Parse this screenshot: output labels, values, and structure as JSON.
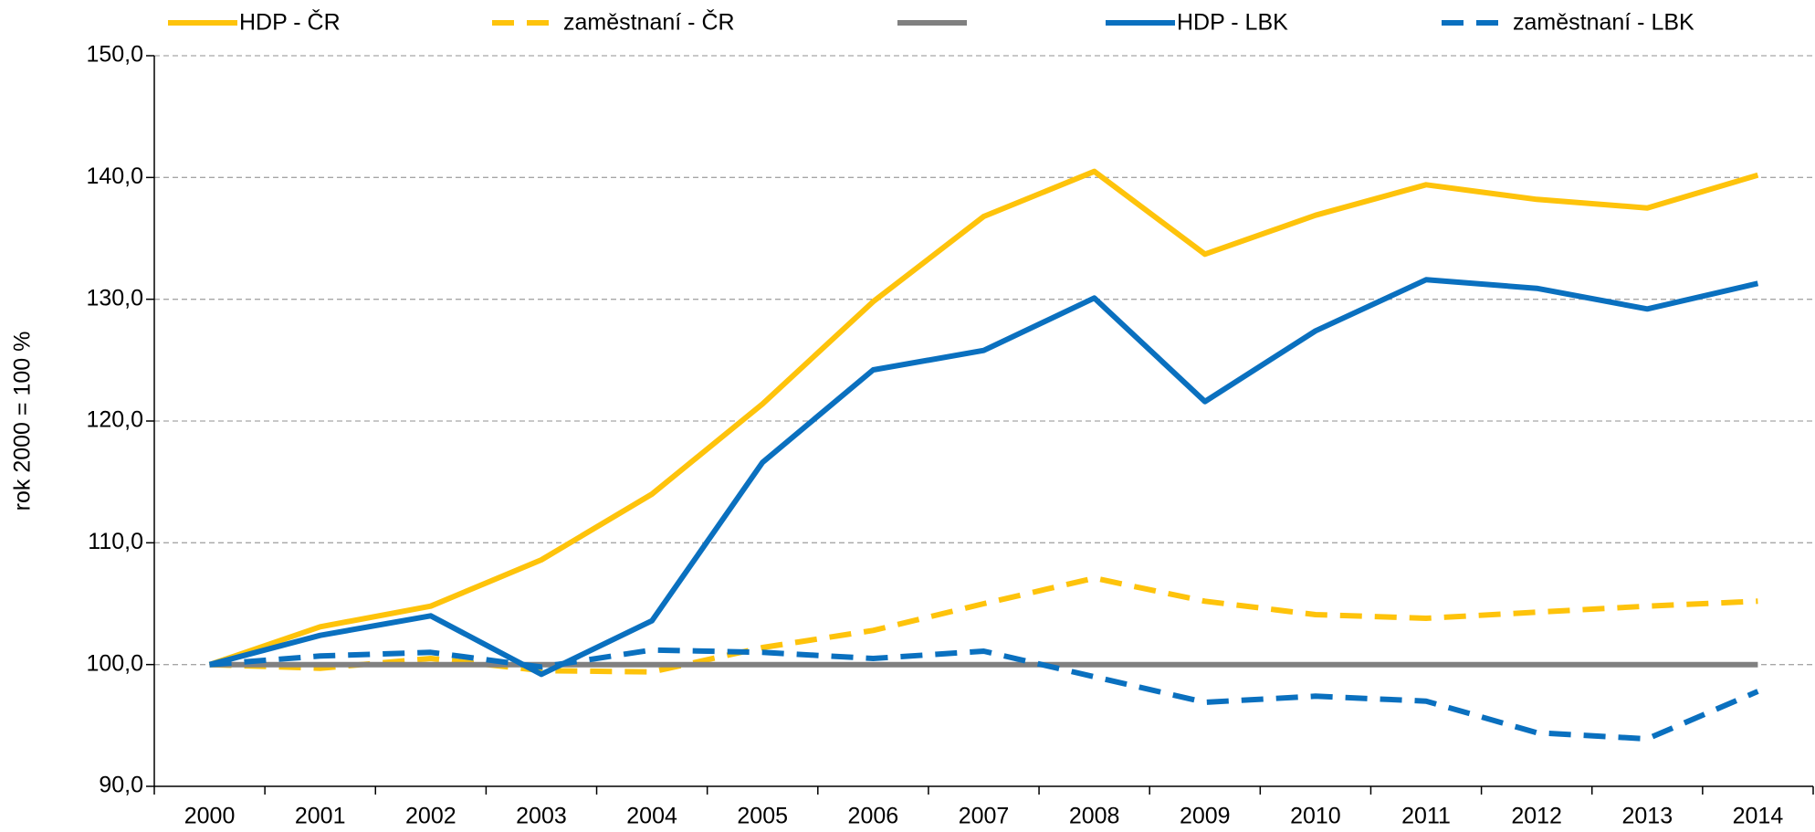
{
  "chart_data": {
    "type": "line",
    "y_label": "rok 2000 = 100 %",
    "categories": [
      "2000",
      "2001",
      "2002",
      "2003",
      "2004",
      "2005",
      "2006",
      "2007",
      "2008",
      "2009",
      "2010",
      "2011",
      "2012",
      "2013",
      "2014"
    ],
    "series": [
      {
        "name": "HDP - ČR",
        "color": "#fec30b",
        "dash": false,
        "values": [
          100,
          103.1,
          104.8,
          108.6,
          114.0,
          121.4,
          129.8,
          136.8,
          140.5,
          133.7,
          136.9,
          139.4,
          138.2,
          137.5,
          140.2
        ]
      },
      {
        "name": "zaměstnaní - ČR",
        "color": "#fec30b",
        "dash": true,
        "values": [
          100,
          99.7,
          100.5,
          99.5,
          99.4,
          101.4,
          102.8,
          105.0,
          107.1,
          105.2,
          104.1,
          103.8,
          104.3,
          104.8,
          105.2
        ]
      },
      {
        "color": "#808080",
        "dash": false,
        "values": [
          100,
          100,
          100,
          100,
          100,
          100,
          100,
          100,
          100,
          100,
          100,
          100,
          100,
          100,
          100
        ]
      },
      {
        "name": "HDP - LBK",
        "color": "#0a70bf",
        "dash": false,
        "values": [
          100,
          102.4,
          104.0,
          99.2,
          103.6,
          116.6,
          124.2,
          125.8,
          130.1,
          121.6,
          127.4,
          131.6,
          130.9,
          129.2,
          131.3
        ]
      },
      {
        "name": "zaměstnaní - LBK",
        "color": "#0a70bf",
        "dash": true,
        "values": [
          100,
          100.7,
          101.0,
          99.8,
          101.2,
          101.0,
          100.5,
          101.1,
          99.0,
          96.9,
          97.4,
          97.0,
          94.4,
          93.9,
          97.8
        ]
      }
    ],
    "ylim": [
      90,
      150
    ],
    "yticks": [
      {
        "value": 90,
        "label": "90,0"
      },
      {
        "value": 100,
        "label": "100,0"
      },
      {
        "value": 110,
        "label": "110,0"
      },
      {
        "value": 120,
        "label": "120,0"
      },
      {
        "value": 130,
        "label": "130,0"
      },
      {
        "value": 140,
        "label": "140,0"
      },
      {
        "value": 150,
        "label": "150,0"
      }
    ],
    "grid": true,
    "legend": "top"
  }
}
